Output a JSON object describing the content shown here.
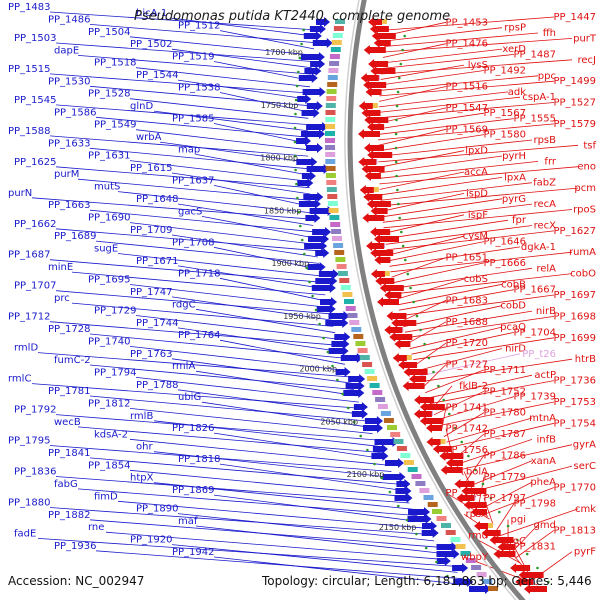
{
  "header": {
    "title": "Pseudomonas putida KT2440, complete genome"
  },
  "footer": {
    "accession": "Accession: NC_002947",
    "summary": "Topology: circular; Length: 6,181,863 bp; Genes: 5,446"
  },
  "colors": {
    "minus_strand": "#1a1acc",
    "plus_strand": "#e01010",
    "highlight": "#e0a0e0",
    "backbone": "#808080",
    "tick_dots": "#2a9a2a"
  },
  "ruler": {
    "ticks": [
      "1700 kbp",
      "1750 kbp",
      "1800 kbp",
      "1850 kbp",
      "1900 kbp",
      "1950 kbp",
      "2000 kbp",
      "2050 kbp",
      "2100 kbp",
      "2150 kbp"
    ]
  },
  "left_labels": [
    "PP_1483",
    "hicA-1",
    "PP_1486",
    "PP_1512",
    "PP_1504",
    "PP_1503",
    "PP_1502",
    "dapE",
    "PP_1519",
    "PP_1518",
    "PP_1515",
    "PP_1544",
    "PP_1530",
    "PP_1538",
    "PP_1528",
    "PP_1545",
    "glnD",
    "PP_1586",
    "PP_1585",
    "PP_1549",
    "PP_1588",
    "wrbA",
    "PP_1633",
    "map",
    "PP_1631",
    "PP_1625",
    "PP_1615",
    "purM",
    "PP_1637",
    "mutS",
    "purN",
    "PP_1648",
    "PP_1663",
    "gacS",
    "PP_1690",
    "PP_1662",
    "PP_1709",
    "PP_1689",
    "PP_1708",
    "sugE",
    "PP_1687",
    "PP_1671",
    "minE",
    "PP_1718",
    "PP_1695",
    "PP_1707",
    "PP_1747",
    "prc",
    "rdgC",
    "PP_1729",
    "PP_1712",
    "PP_1744",
    "PP_1728",
    "PP_1764",
    "PP_1740",
    "rmlD",
    "PP_1763",
    "fumC-2",
    "rmlA",
    "PP_1794",
    "rmlC",
    "PP_1788",
    "PP_1781",
    "ubiG",
    "PP_1812",
    "PP_1792",
    "rmlB",
    "wecB",
    "PP_1826",
    "kdsA-2",
    "PP_1795",
    "ohr",
    "PP_1841",
    "PP_1818",
    "PP_1854",
    "PP_1836",
    "htpX",
    "fabG",
    "PP_1869",
    "fimD",
    "PP_1880",
    "PP_1890",
    "PP_1882",
    "maf",
    "rne",
    "fadE",
    "PP_1920",
    "PP_1936",
    "PP_1942"
  ],
  "right_labels": [
    "PP_1447",
    "PP_1453",
    "rpsP",
    "ffh",
    "purT",
    "PP_1476",
    "xerD",
    "PP_1487",
    "recJ",
    "lysS",
    "PP_1492",
    "ppc",
    "PP_1499",
    "PP_1516",
    "adk",
    "cspA-1",
    "PP_1527",
    "PP_1547",
    "PP_1567",
    "PP_1555",
    "PP_1579",
    "PP_1569",
    "PP_1580",
    "rpsB",
    "tsf",
    "lpxD",
    "pyrH",
    "frr",
    "eno",
    "accA",
    "lpxA",
    "fabZ",
    "pcm",
    "ispD",
    "pyrG",
    "recA",
    "rpoS",
    "ispF",
    "fpr",
    "recX",
    "PP_1627",
    "cysM",
    "PP_1646",
    "dgkA-1",
    "rumA",
    "PP_1651",
    "PP_1666",
    "relA",
    "cobO",
    "cobS",
    "cobB",
    "PP_1667",
    "PP_1697",
    "PP_1683",
    "cobD",
    "nirB",
    "PP_1698",
    "PP_1688",
    "pcaQ",
    "PP_1704",
    "PP_1699",
    "PP_1720",
    "nirD",
    "PP_t26",
    "htrB",
    "PP_1727",
    "PP_1711",
    "actP",
    "PP_1736",
    "fklB-2",
    "PP_1752",
    "PP_1739",
    "PP_1753",
    "PP_1741",
    "PP_1780",
    "mtnA",
    "PP_1754",
    "PP_1742",
    "PP_1787",
    "infB",
    "gyrA",
    "PP_1756",
    "PP_1786",
    "xanA",
    "serC",
    "bolA",
    "PP_1779",
    "pheA",
    "PP_1770",
    "PP_1761",
    "PP_1797",
    "PP_1798",
    "cmk",
    "rpsA",
    "pgi",
    "gmd",
    "PP_1813",
    "rmd",
    "aroC",
    "PP_1831",
    "pyrF",
    "wbpY"
  ]
}
